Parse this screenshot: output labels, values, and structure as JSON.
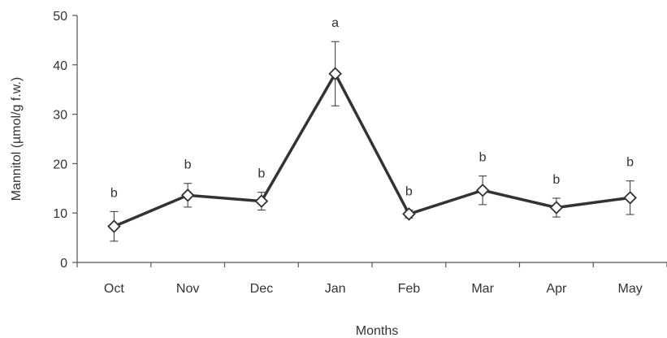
{
  "chart_data": {
    "type": "line",
    "xlabel": "Months",
    "ylabel": "Mannitol (µmol/g f.w.)",
    "ylim": [
      0,
      50
    ],
    "yticks": [
      0,
      10,
      20,
      30,
      40,
      50
    ],
    "grid": false,
    "categories": [
      "Oct",
      "Nov",
      "Dec",
      "Jan",
      "Feb",
      "Mar",
      "Apr",
      "May"
    ],
    "series": [
      {
        "values": [
          7.3,
          13.6,
          12.4,
          38.2,
          9.8,
          14.6,
          11.1,
          13.1
        ],
        "error": [
          3.0,
          2.4,
          1.8,
          6.5,
          0.8,
          2.9,
          1.9,
          3.4
        ],
        "significance": [
          "b",
          "b",
          "b",
          "a",
          "b",
          "b",
          "b",
          "b"
        ],
        "color": "#333333",
        "marker": "open-diamond"
      }
    ]
  }
}
